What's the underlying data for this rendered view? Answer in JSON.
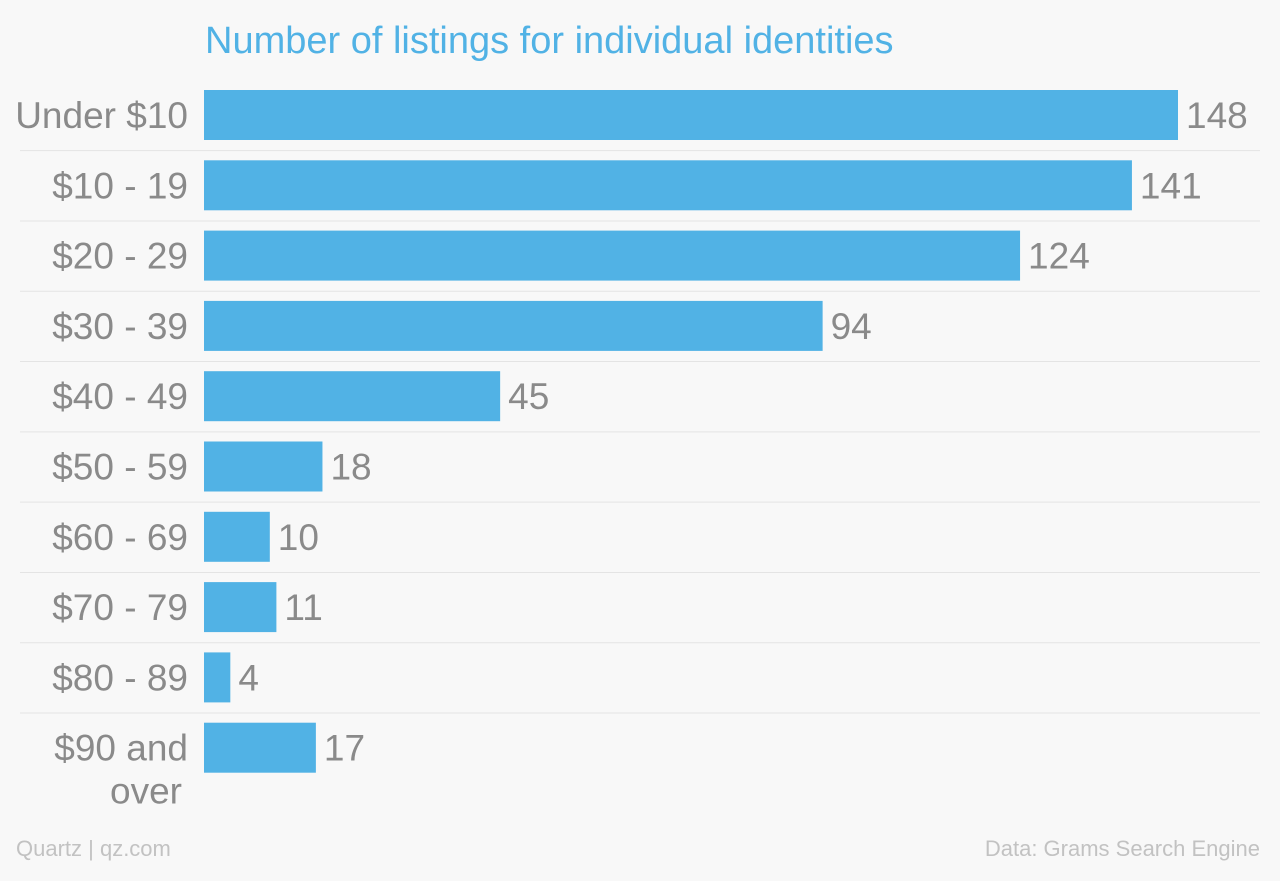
{
  "chart_data": {
    "type": "bar",
    "orientation": "horizontal",
    "title": "Number of listings for individual identities",
    "categories": [
      [
        "Under $10"
      ],
      [
        "$10 - 19"
      ],
      [
        "$20 - 29"
      ],
      [
        "$30 - 39"
      ],
      [
        "$40 - 49"
      ],
      [
        "$50 - 59"
      ],
      [
        "$60 - 69"
      ],
      [
        "$70 - 79"
      ],
      [
        "$80 - 89"
      ],
      [
        "$90 and",
        "over"
      ]
    ],
    "values": [
      148,
      141,
      124,
      94,
      45,
      18,
      10,
      11,
      4,
      17
    ],
    "xlim": [
      0,
      148
    ],
    "grid": false,
    "data_labels": true,
    "bar_color": "#51b2e5"
  },
  "footer": {
    "source_left": "Quartz | qz.com",
    "source_right": "Data: Grams Search Engine"
  }
}
